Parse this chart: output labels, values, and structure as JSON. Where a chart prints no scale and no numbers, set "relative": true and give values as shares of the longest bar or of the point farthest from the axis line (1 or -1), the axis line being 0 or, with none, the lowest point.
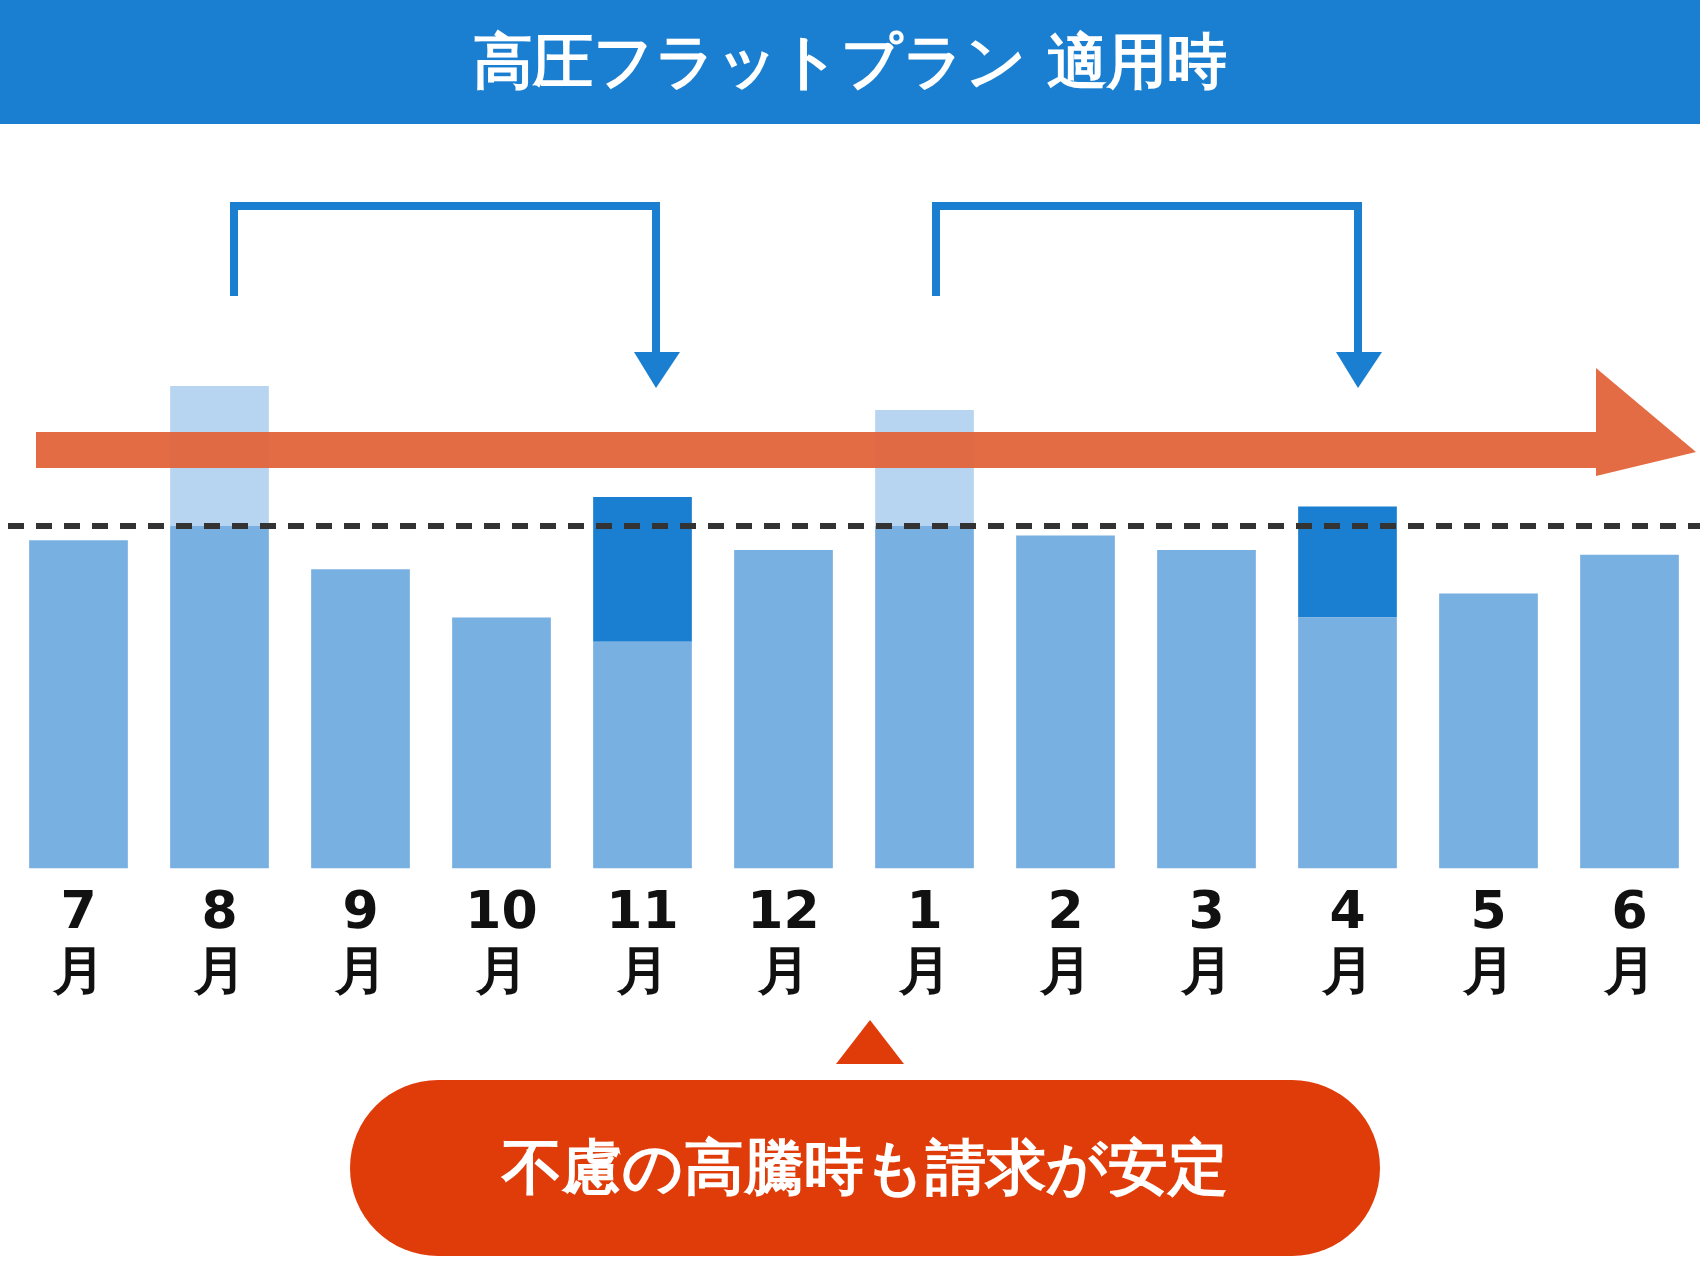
{
  "chart_data": {
    "type": "bar",
    "title": "高圧フラットプラン 適用時",
    "relative": true,
    "stacked": true,
    "legend": false,
    "grid": false,
    "tick_labels": "x",
    "categories": [
      "7月",
      "8月",
      "9月",
      "10月",
      "11月",
      "12月",
      "1月",
      "2月",
      "3月",
      "4月",
      "5月",
      "6月"
    ],
    "series": [
      {
        "color": "#78b0e2",
        "values": [
          0.68,
          0.71,
          0.62,
          0.52,
          0.47,
          0.66,
          0.71,
          0.69,
          0.66,
          0.52,
          0.57,
          0.65
        ]
      },
      {
        "colors": [
          "#b7d5f1",
          "#b7d5f1",
          "#b7d5f1",
          "#b7d5f1",
          "#1a7fd0",
          "#b7d5f1",
          "#b7d5f1",
          "#b7d5f1",
          "#b7d5f1",
          "#1a7fd0",
          "#b7d5f1",
          "#b7d5f1"
        ],
        "values": [
          null,
          0.29,
          null,
          null,
          0.3,
          null,
          0.24,
          null,
          null,
          0.23,
          null,
          null
        ]
      }
    ],
    "ref_lines": [
      {
        "axis": "y",
        "value": 0.71,
        "color": "#333333",
        "line_style": "dashed"
      }
    ],
    "annotations": [
      "不慮の高騰時も請求が安定"
    ]
  }
}
